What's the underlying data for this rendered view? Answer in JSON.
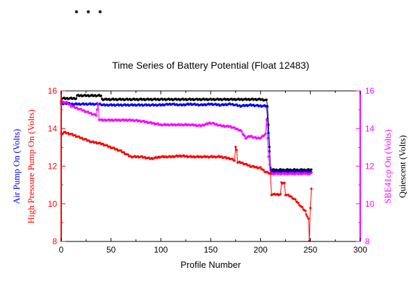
{
  "chart_data": {
    "type": "line",
    "title": "Time Series of Battery Potential (Float 12483)",
    "xlabel": "Profile Number",
    "xlim": [
      0,
      300
    ],
    "xticks": [
      0,
      50,
      100,
      150,
      200,
      250,
      300
    ],
    "ylim": [
      8,
      16
    ],
    "yticks": [
      8,
      10,
      12,
      14,
      16
    ],
    "left_axis_labels": [
      {
        "text": "Air Pump On (Volts)",
        "color": "#0000ff"
      },
      {
        "text": "High Pressure Pump On (Volts)",
        "color": "#ff0000"
      }
    ],
    "right_axis_labels": [
      {
        "text": "SBE41cp On (Volts)",
        "color": "#ff00ff"
      },
      {
        "text": "Quiescent (Volts)",
        "color": "#000000"
      }
    ],
    "left_tick_color": "#ff0000",
    "right_tick_color": "#ff00ff",
    "series": [
      {
        "color": "#000000",
        "x": [
          0,
          1,
          15,
          16,
          40,
          41,
          200,
          206,
          207,
          208,
          209,
          210,
          211,
          251
        ],
        "y": [
          15.5,
          15.6,
          15.6,
          15.75,
          15.75,
          15.55,
          15.55,
          15.5,
          15.2,
          14.2,
          13.0,
          11.85,
          11.8,
          11.8
        ]
      },
      {
        "color": "#0000ff",
        "x": [
          0,
          5,
          10,
          40,
          41,
          100,
          110,
          120,
          130,
          140,
          150,
          160,
          170,
          180,
          190,
          200,
          206,
          207,
          208,
          209,
          210,
          211,
          251
        ],
        "y": [
          15.3,
          15.35,
          15.3,
          15.3,
          15.25,
          15.25,
          15.3,
          15.25,
          15.3,
          15.25,
          15.3,
          15.25,
          15.3,
          15.2,
          15.25,
          15.2,
          15.2,
          14.5,
          13.8,
          12.8,
          11.9,
          11.7,
          11.7
        ]
      },
      {
        "color": "#ff00ff",
        "x": [
          0,
          5,
          10,
          20,
          30,
          35,
          37,
          38,
          40,
          50,
          70,
          80,
          90,
          100,
          110,
          120,
          130,
          140,
          150,
          160,
          170,
          180,
          185,
          190,
          195,
          200,
          205,
          206,
          208,
          210,
          251
        ],
        "y": [
          15.4,
          15.4,
          15.2,
          15.0,
          14.8,
          14.7,
          15.3,
          14.5,
          14.45,
          14.45,
          14.45,
          14.4,
          14.3,
          14.2,
          14.2,
          14.2,
          14.2,
          14.15,
          14.3,
          14.15,
          14.1,
          13.9,
          13.5,
          13.6,
          13.5,
          13.5,
          13.7,
          14.5,
          12.5,
          11.6,
          11.6
        ]
      },
      {
        "color": "#ff0000",
        "x": [
          0,
          3,
          10,
          20,
          30,
          40,
          50,
          60,
          70,
          80,
          90,
          100,
          110,
          120,
          130,
          140,
          150,
          160,
          170,
          174,
          175,
          176,
          177,
          180,
          190,
          200,
          205,
          210,
          211,
          220,
          221,
          224,
          225,
          230,
          235,
          240,
          245,
          248,
          249,
          250,
          251
        ],
        "y": [
          13.7,
          13.8,
          13.7,
          13.5,
          13.3,
          13.2,
          13.0,
          12.8,
          12.5,
          12.5,
          12.4,
          12.5,
          12.5,
          12.55,
          12.5,
          12.5,
          12.5,
          12.5,
          12.4,
          12.3,
          13.0,
          12.9,
          12.2,
          12.2,
          12.0,
          11.9,
          11.7,
          11.6,
          10.5,
          10.5,
          11.1,
          11.1,
          10.5,
          10.4,
          10.2,
          9.9,
          9.6,
          9.2,
          8.0,
          9.8,
          10.8
        ]
      }
    ]
  }
}
